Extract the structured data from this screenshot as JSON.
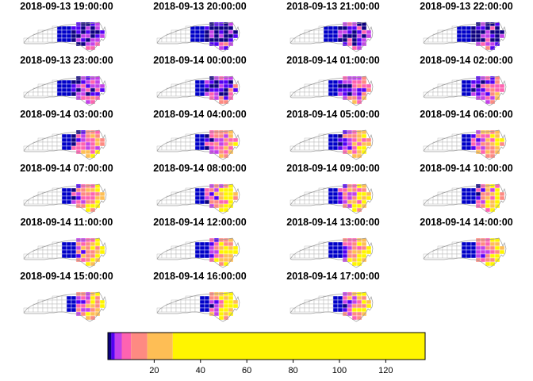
{
  "panels": [
    {
      "title": "2018-09-13 19:00:00",
      "front": 0.55,
      "intensity": 0.15
    },
    {
      "title": "2018-09-13 20:00:00",
      "front": 0.55,
      "intensity": 0.22
    },
    {
      "title": "2018-09-13 21:00:00",
      "front": 0.55,
      "intensity": 0.28
    },
    {
      "title": "2018-09-13 22:00:00",
      "front": 0.56,
      "intensity": 0.22
    },
    {
      "title": "2018-09-13 23:00:00",
      "front": 0.56,
      "intensity": 0.3
    },
    {
      "title": "2018-09-14 00:00:00",
      "front": 0.57,
      "intensity": 0.36
    },
    {
      "title": "2018-09-14 01:00:00",
      "front": 0.57,
      "intensity": 0.42
    },
    {
      "title": "2018-09-14 02:00:00",
      "front": 0.58,
      "intensity": 0.5
    },
    {
      "title": "2018-09-14 03:00:00",
      "front": 0.58,
      "intensity": 0.6
    },
    {
      "title": "2018-09-14 04:00:00",
      "front": 0.58,
      "intensity": 0.68
    },
    {
      "title": "2018-09-14 05:00:00",
      "front": 0.59,
      "intensity": 0.72
    },
    {
      "title": "2018-09-14 06:00:00",
      "front": 0.59,
      "intensity": 0.78
    },
    {
      "title": "2018-09-14 07:00:00",
      "front": 0.6,
      "intensity": 0.82
    },
    {
      "title": "2018-09-14 08:00:00",
      "front": 0.6,
      "intensity": 0.85
    },
    {
      "title": "2018-09-14 09:00:00",
      "front": 0.6,
      "intensity": 0.85
    },
    {
      "title": "2018-09-14 10:00:00",
      "front": 0.61,
      "intensity": 0.8
    },
    {
      "title": "2018-09-14 11:00:00",
      "front": 0.61,
      "intensity": 0.85
    },
    {
      "title": "2018-09-14 12:00:00",
      "front": 0.62,
      "intensity": 0.88
    },
    {
      "title": "2018-09-14 13:00:00",
      "front": 0.62,
      "intensity": 0.9
    },
    {
      "title": "2018-09-14 14:00:00",
      "front": 0.62,
      "intensity": 0.86
    },
    {
      "title": "2018-09-14 15:00:00",
      "front": 0.63,
      "intensity": 0.86
    },
    {
      "title": "2018-09-14 16:00:00",
      "front": 0.63,
      "intensity": 0.88
    },
    {
      "title": "2018-09-14 17:00:00",
      "front": 0.64,
      "intensity": 0.85
    }
  ],
  "legend": {
    "breaks": [
      0,
      1.5,
      3,
      6,
      10,
      17,
      28,
      137
    ],
    "colors": [
      "#0D0080",
      "#5300F5",
      "#C341E9",
      "#FE63B1",
      "#FE8A82",
      "#FEBE55",
      "#FFF500"
    ],
    "range": [
      0,
      137
    ],
    "ticks": [
      20,
      40,
      60,
      80,
      100,
      120
    ],
    "tick_labels": [
      "20",
      "40",
      "60",
      "80",
      "100",
      "120"
    ]
  },
  "colors": {
    "county_border": "#ffffff",
    "empty_county_border": "#bcbcbc",
    "cold": "#0000C8"
  }
}
